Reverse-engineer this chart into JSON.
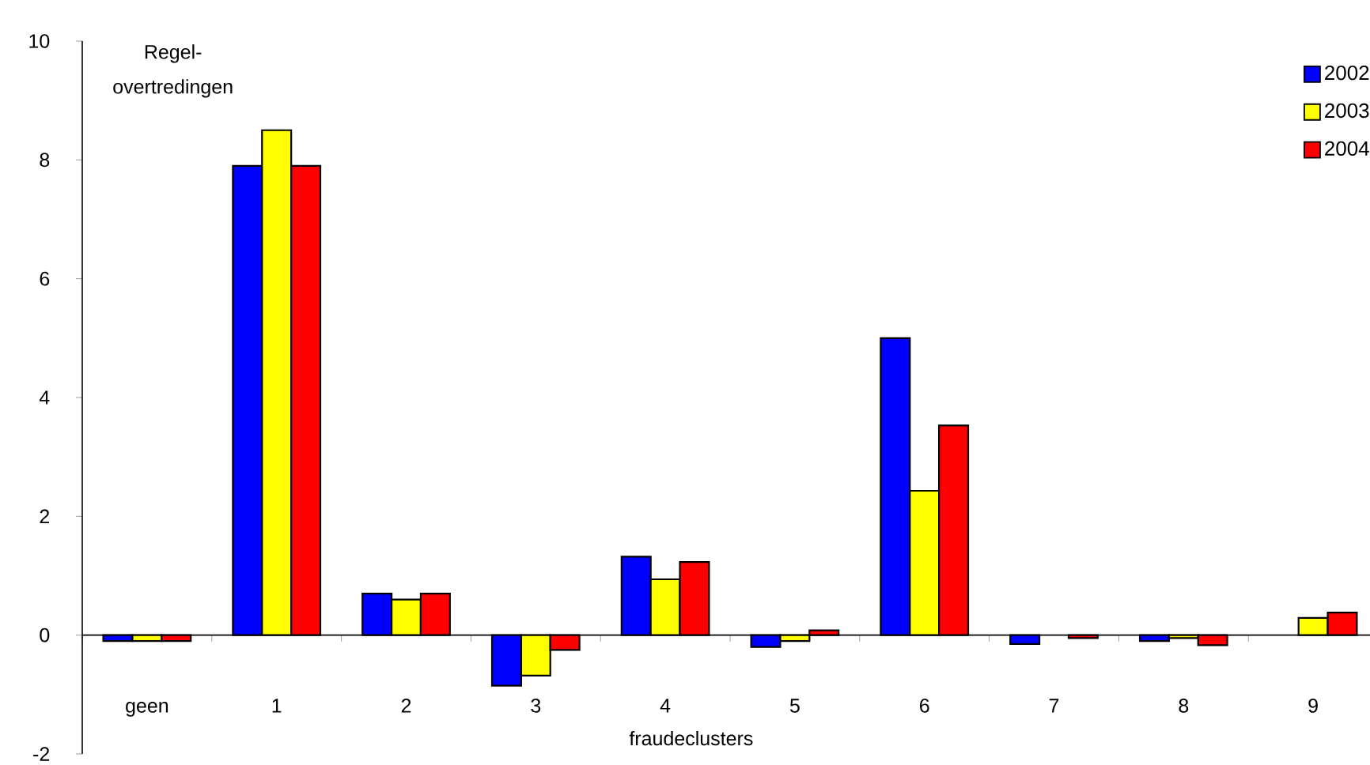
{
  "chart_data": {
    "type": "bar",
    "xlabel": "fraudeclusters",
    "ylabel": "Regel-overtredingen",
    "categories": [
      "geen",
      "1",
      "2",
      "3",
      "4",
      "5",
      "6",
      "7",
      "8",
      "9"
    ],
    "series": [
      {
        "name": "2002",
        "color": "#0000ff",
        "values": [
          -0.1,
          7.9,
          0.7,
          -0.85,
          1.32,
          -0.2,
          5.0,
          -0.15,
          -0.1,
          null
        ]
      },
      {
        "name": "2003",
        "color": "#ffff00",
        "values": [
          -0.1,
          8.5,
          0.6,
          -0.68,
          0.94,
          -0.1,
          2.43,
          null,
          -0.05,
          0.29
        ]
      },
      {
        "name": "2004",
        "color": "#ff0000",
        "values": [
          -0.1,
          7.9,
          0.7,
          -0.25,
          1.23,
          0.08,
          3.53,
          -0.05,
          -0.17,
          0.38
        ]
      }
    ],
    "ylim": [
      -2,
      10
    ],
    "yticks": [
      -2,
      0,
      2,
      4,
      6,
      8,
      10
    ],
    "legend": "top right"
  }
}
